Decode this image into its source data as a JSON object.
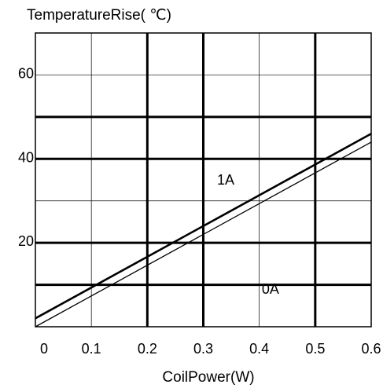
{
  "chart_data": {
    "type": "line",
    "ylabel": "TemperatureRise( ℃)",
    "xlabel": "CoilPower(W)",
    "xlim": [
      0,
      0.6
    ],
    "ylim": [
      0,
      70
    ],
    "x_ticks": [
      0,
      0.1,
      0.2,
      0.3,
      0.4,
      0.5,
      0.6
    ],
    "x_tick_labels": [
      "0",
      "0.1",
      "0.2",
      "0.3",
      "0.4",
      "0.5",
      "0.6"
    ],
    "y_ticks": [
      20,
      40,
      60
    ],
    "y_tick_labels": [
      "20",
      "40",
      "60"
    ],
    "grid": true,
    "grid_major_y": [
      10,
      20,
      40,
      50
    ],
    "grid_minor_y": [
      30,
      60
    ],
    "grid_major_x": [
      0.2,
      0.3,
      0.5
    ],
    "grid_minor_x": [
      0.1,
      0.4
    ],
    "series": [
      {
        "name": "1A",
        "x": [
          0,
          0.6
        ],
        "y": [
          2,
          46
        ],
        "color": "#000000",
        "weight": "heavy"
      },
      {
        "name": "0A",
        "x": [
          0,
          0.6
        ],
        "y": [
          0,
          44
        ],
        "color": "#000000",
        "weight": "light"
      }
    ]
  }
}
